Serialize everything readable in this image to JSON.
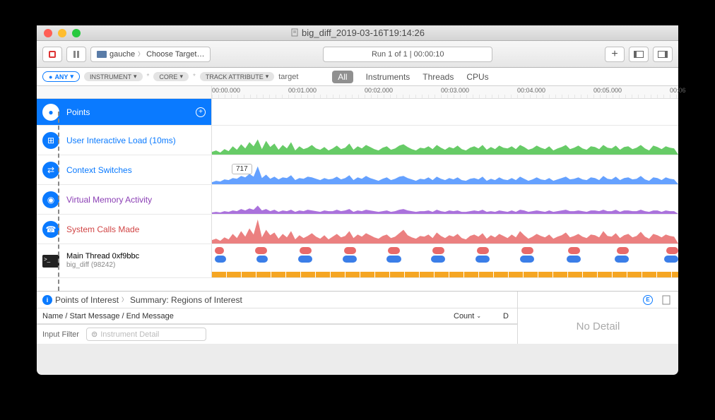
{
  "window": {
    "title": "big_diff_2019-03-16T19:14:26",
    "traffic_colors": {
      "close": "#ff5f56",
      "min": "#ffbd2e",
      "max": "#27c93f"
    }
  },
  "toolbar": {
    "device": "gauche",
    "target": "Choose Target…",
    "run_info": "Run 1 of 1  |  00:00:10"
  },
  "filterbar": {
    "any": "ANY",
    "pill_instrument": "INSTRUMENT",
    "pill_core": "CORE",
    "pill_trackattr": "TRACK ATTRIBUTE",
    "input_value": "target",
    "tab_all": "All",
    "tab_instruments": "Instruments",
    "tab_threads": "Threads",
    "tab_cpus": "CPUs"
  },
  "ruler": {
    "ticks": [
      {
        "pos": 0,
        "label": "00:00.000"
      },
      {
        "pos": 108,
        "label": "00:01.000"
      },
      {
        "pos": 216,
        "label": "00:02.000"
      },
      {
        "pos": 324,
        "label": "00:03.000"
      },
      {
        "pos": 432,
        "label": "00:04.000"
      },
      {
        "pos": 540,
        "label": "00:05.000"
      },
      {
        "pos": 648,
        "label": "00:06"
      }
    ]
  },
  "tracks": [
    {
      "id": "points",
      "label": "Points",
      "icon_bg": "#ffffff",
      "icon_color": "#0a7aff",
      "label_color": "#ffffff",
      "selected": true,
      "glyph": "📍"
    },
    {
      "id": "uil",
      "label": "User Interactive Load (10ms)",
      "icon_bg": "#0a7aff",
      "label_color": "#0a7aff",
      "glyph": "⊞",
      "wave_color": "#4cc24c"
    },
    {
      "id": "ctx",
      "label": "Context Switches",
      "icon_bg": "#0a7aff",
      "label_color": "#0a7aff",
      "glyph": "⇄",
      "wave_color": "#4a90ff",
      "tooltip": "717"
    },
    {
      "id": "vma",
      "label": "Virtual Memory Activity",
      "icon_bg": "#0a7aff",
      "label_color": "#8b3fb5",
      "glyph": "◉",
      "wave_color": "#9b59d6"
    },
    {
      "id": "sys",
      "label": "System Calls Made",
      "icon_bg": "#0a7aff",
      "label_color": "#d14545",
      "glyph": "☎",
      "wave_color": "#e86a6a"
    }
  ],
  "thread_track": {
    "label": "Main Thread  0xf9bbc",
    "sublabel": "big_diff (98242)",
    "blob_rows": [
      {
        "color": "#e86a6a",
        "blobs": [
          14,
          38,
          18,
          40,
          18,
          40,
          18,
          40,
          18,
          40,
          18,
          40,
          18,
          40,
          18,
          44,
          18,
          46,
          18,
          48,
          18
        ]
      },
      {
        "color": "#3b7ee8",
        "blobs": [
          18,
          38,
          18,
          38,
          22,
          38,
          22,
          38,
          22,
          38,
          22,
          38,
          22,
          38,
          22,
          42,
          22,
          44,
          22,
          46,
          22
        ]
      }
    ]
  },
  "detail": {
    "breadcrumb_1": "Points of Interest",
    "breadcrumb_2": "Summary: Regions of Interest",
    "col_name": "Name / Start Message / End Message",
    "col_count": "Count",
    "footer_label": "Input Filter",
    "footer_placeholder": "Instrument Detail",
    "no_detail": "No Detail"
  },
  "waveforms": {
    "uil": [
      4,
      6,
      3,
      8,
      5,
      12,
      7,
      15,
      9,
      18,
      12,
      22,
      8,
      20,
      11,
      16,
      7,
      14,
      9,
      18,
      6,
      12,
      8,
      10,
      14,
      9,
      7,
      11,
      6,
      9,
      13,
      8,
      10,
      16,
      7,
      12,
      9,
      14,
      11,
      8,
      6,
      10,
      12,
      7,
      9,
      13,
      15,
      11,
      8,
      6,
      10,
      9,
      12,
      8,
      14,
      10,
      7,
      11,
      9,
      13,
      8,
      6,
      10,
      12,
      9,
      14,
      7,
      11,
      8,
      13,
      10,
      9,
      12,
      8,
      14,
      11,
      7,
      9,
      13,
      10,
      8,
      12,
      6,
      9,
      11,
      14,
      8,
      10,
      13,
      9,
      7,
      12,
      11,
      8,
      14,
      10,
      9,
      13,
      7,
      11,
      12,
      8,
      10,
      14,
      9,
      6,
      13,
      11,
      8,
      12,
      10,
      9
    ],
    "ctx": [
      3,
      5,
      4,
      7,
      6,
      9,
      8,
      12,
      10,
      15,
      11,
      26,
      9,
      14,
      8,
      11,
      7,
      10,
      9,
      13,
      6,
      9,
      8,
      11,
      10,
      8,
      6,
      9,
      7,
      8,
      11,
      7,
      9,
      13,
      6,
      10,
      8,
      12,
      9,
      7,
      5,
      8,
      10,
      6,
      8,
      11,
      12,
      9,
      7,
      5,
      8,
      7,
      10,
      6,
      11,
      8,
      6,
      9,
      7,
      10,
      6,
      5,
      8,
      9,
      7,
      11,
      5,
      8,
      6,
      10,
      7,
      6,
      9,
      6,
      11,
      8,
      5,
      7,
      10,
      7,
      6,
      9,
      5,
      7,
      9,
      11,
      7,
      8,
      10,
      7,
      6,
      10,
      9,
      6,
      12,
      8,
      7,
      11,
      6,
      9,
      10,
      7,
      8,
      12,
      7,
      5,
      10,
      9,
      6,
      10,
      8,
      7
    ],
    "vma": [
      2,
      3,
      2,
      4,
      3,
      5,
      4,
      7,
      5,
      8,
      6,
      12,
      5,
      7,
      4,
      6,
      3,
      5,
      4,
      6,
      3,
      5,
      4,
      6,
      5,
      4,
      3,
      5,
      4,
      4,
      6,
      4,
      5,
      7,
      3,
      5,
      4,
      6,
      5,
      4,
      3,
      4,
      5,
      3,
      4,
      6,
      7,
      5,
      4,
      3,
      4,
      4,
      5,
      3,
      6,
      4,
      3,
      5,
      4,
      5,
      3,
      3,
      4,
      5,
      4,
      6,
      3,
      4,
      3,
      5,
      4,
      3,
      5,
      3,
      6,
      5,
      3,
      4,
      5,
      4,
      3,
      5,
      3,
      4,
      5,
      6,
      4,
      4,
      5,
      4,
      3,
      5,
      5,
      4,
      6,
      4,
      4,
      6,
      3,
      5,
      5,
      4,
      4,
      6,
      4,
      3,
      5,
      5,
      3,
      5,
      4,
      4
    ],
    "sys": [
      5,
      7,
      4,
      9,
      6,
      14,
      8,
      18,
      10,
      22,
      13,
      35,
      9,
      20,
      12,
      16,
      7,
      14,
      9,
      18,
      6,
      12,
      8,
      11,
      15,
      10,
      7,
      12,
      6,
      10,
      14,
      9,
      11,
      18,
      8,
      13,
      10,
      15,
      12,
      9,
      7,
      11,
      13,
      8,
      10,
      15,
      20,
      12,
      9,
      7,
      11,
      10,
      13,
      8,
      16,
      11,
      8,
      12,
      10,
      14,
      8,
      6,
      11,
      13,
      10,
      15,
      7,
      12,
      9,
      14,
      11,
      8,
      13,
      9,
      18,
      12,
      7,
      10,
      14,
      11,
      9,
      13,
      7,
      10,
      12,
      16,
      9,
      11,
      14,
      10,
      8,
      13,
      12,
      9,
      18,
      11,
      10,
      15,
      8,
      12,
      14,
      9,
      11,
      17,
      10,
      7,
      14,
      12,
      9,
      13,
      11,
      10
    ]
  }
}
